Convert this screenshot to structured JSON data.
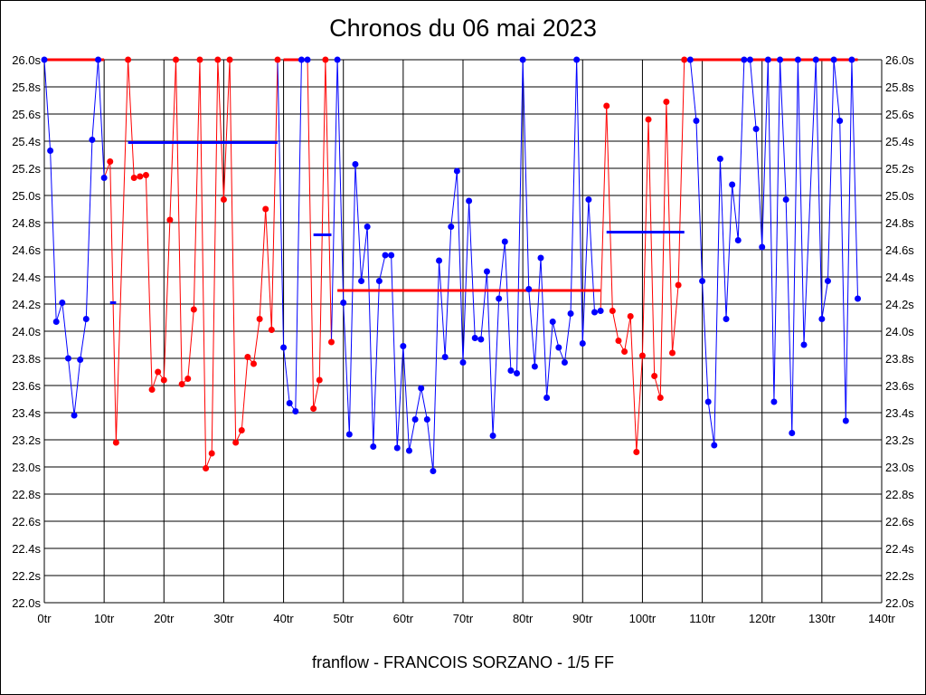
{
  "chart_data": {
    "type": "line",
    "title": "Chronos du 06 mai 2023",
    "subtitle": "franflow - FRANCOIS SORZANO - 1/5 FF",
    "xlabel": "",
    "ylabel": "",
    "xlim": [
      0,
      140
    ],
    "ylim": [
      22.0,
      26.0
    ],
    "grid": true,
    "x_ticks": [
      "0tr",
      "10tr",
      "20tr",
      "30tr",
      "40tr",
      "50tr",
      "60tr",
      "70tr",
      "80tr",
      "90tr",
      "100tr",
      "110tr",
      "120tr",
      "130tr",
      "140tr"
    ],
    "y_ticks": [
      "22.0s",
      "22.2s",
      "22.4s",
      "22.6s",
      "22.8s",
      "23.0s",
      "23.2s",
      "23.4s",
      "23.6s",
      "23.8s",
      "24.0s",
      "24.2s",
      "24.4s",
      "24.6s",
      "24.8s",
      "25.0s",
      "25.2s",
      "25.4s",
      "25.6s",
      "25.8s",
      "26.0s"
    ],
    "colors": {
      "blue": "#0000ff",
      "red": "#ff0000"
    },
    "points": [
      [
        0,
        26.0,
        "blue"
      ],
      [
        1,
        25.33,
        "blue"
      ],
      [
        2,
        24.07,
        "blue"
      ],
      [
        3,
        24.21,
        "blue"
      ],
      [
        4,
        23.8,
        "blue"
      ],
      [
        5,
        23.38,
        "blue"
      ],
      [
        6,
        23.79,
        "blue"
      ],
      [
        7,
        24.09,
        "blue"
      ],
      [
        8,
        25.41,
        "blue"
      ],
      [
        9,
        26.0,
        "blue"
      ],
      [
        10,
        25.13,
        "blue"
      ],
      [
        11,
        25.25,
        "red"
      ],
      [
        12,
        23.18,
        "red"
      ],
      [
        14,
        26.0,
        "red"
      ],
      [
        15,
        25.13,
        "red"
      ],
      [
        16,
        25.14,
        "red"
      ],
      [
        17,
        25.15,
        "red"
      ],
      [
        18,
        23.57,
        "red"
      ],
      [
        19,
        23.7,
        "red"
      ],
      [
        20,
        23.64,
        "red"
      ],
      [
        21,
        24.82,
        "red"
      ],
      [
        22,
        26.0,
        "red"
      ],
      [
        23,
        23.61,
        "red"
      ],
      [
        24,
        23.65,
        "red"
      ],
      [
        25,
        24.16,
        "red"
      ],
      [
        26,
        26.0,
        "red"
      ],
      [
        27,
        22.99,
        "red"
      ],
      [
        28,
        23.1,
        "red"
      ],
      [
        29,
        26.0,
        "red"
      ],
      [
        30,
        24.97,
        "red"
      ],
      [
        31,
        26.0,
        "red"
      ],
      [
        32,
        23.18,
        "red"
      ],
      [
        33,
        23.27,
        "red"
      ],
      [
        34,
        23.81,
        "red"
      ],
      [
        35,
        23.76,
        "red"
      ],
      [
        36,
        24.09,
        "red"
      ],
      [
        37,
        24.9,
        "red"
      ],
      [
        38,
        24.01,
        "red"
      ],
      [
        39,
        26.0,
        "red"
      ],
      [
        40,
        23.88,
        "blue"
      ],
      [
        41,
        23.47,
        "blue"
      ],
      [
        42,
        23.41,
        "blue"
      ],
      [
        43,
        26.0,
        "blue"
      ],
      [
        44,
        26.0,
        "blue"
      ],
      [
        45,
        23.43,
        "red"
      ],
      [
        46,
        23.64,
        "red"
      ],
      [
        47,
        26.0,
        "red"
      ],
      [
        48,
        23.92,
        "red"
      ],
      [
        49,
        26.0,
        "blue"
      ],
      [
        50,
        24.21,
        "blue"
      ],
      [
        51,
        23.24,
        "blue"
      ],
      [
        52,
        25.23,
        "blue"
      ],
      [
        53,
        24.37,
        "blue"
      ],
      [
        54,
        24.77,
        "blue"
      ],
      [
        55,
        23.15,
        "blue"
      ],
      [
        56,
        24.37,
        "blue"
      ],
      [
        57,
        24.56,
        "blue"
      ],
      [
        58,
        24.56,
        "blue"
      ],
      [
        59,
        23.14,
        "blue"
      ],
      [
        60,
        23.89,
        "blue"
      ],
      [
        61,
        23.12,
        "blue"
      ],
      [
        62,
        23.35,
        "blue"
      ],
      [
        63,
        23.58,
        "blue"
      ],
      [
        64,
        23.35,
        "blue"
      ],
      [
        65,
        22.97,
        "blue"
      ],
      [
        66,
        24.52,
        "blue"
      ],
      [
        67,
        23.81,
        "blue"
      ],
      [
        68,
        24.77,
        "blue"
      ],
      [
        69,
        25.18,
        "blue"
      ],
      [
        70,
        23.77,
        "blue"
      ],
      [
        71,
        24.96,
        "blue"
      ],
      [
        72,
        23.95,
        "blue"
      ],
      [
        73,
        23.94,
        "blue"
      ],
      [
        74,
        24.44,
        "blue"
      ],
      [
        75,
        23.23,
        "blue"
      ],
      [
        76,
        24.24,
        "blue"
      ],
      [
        77,
        24.66,
        "blue"
      ],
      [
        78,
        23.71,
        "blue"
      ],
      [
        79,
        23.69,
        "blue"
      ],
      [
        80,
        26.0,
        "blue"
      ],
      [
        81,
        24.31,
        "blue"
      ],
      [
        82,
        23.74,
        "blue"
      ],
      [
        83,
        24.54,
        "blue"
      ],
      [
        84,
        23.51,
        "blue"
      ],
      [
        85,
        24.07,
        "blue"
      ],
      [
        86,
        23.88,
        "blue"
      ],
      [
        87,
        23.77,
        "blue"
      ],
      [
        88,
        24.13,
        "blue"
      ],
      [
        89,
        26.0,
        "blue"
      ],
      [
        90,
        23.91,
        "blue"
      ],
      [
        91,
        24.97,
        "blue"
      ],
      [
        92,
        24.14,
        "blue"
      ],
      [
        93,
        24.15,
        "blue"
      ],
      [
        94,
        25.66,
        "red"
      ],
      [
        95,
        24.15,
        "red"
      ],
      [
        96,
        23.93,
        "red"
      ],
      [
        97,
        23.85,
        "red"
      ],
      [
        98,
        24.11,
        "red"
      ],
      [
        99,
        23.11,
        "red"
      ],
      [
        100,
        23.82,
        "red"
      ],
      [
        101,
        25.56,
        "red"
      ],
      [
        102,
        23.67,
        "red"
      ],
      [
        103,
        23.51,
        "red"
      ],
      [
        104,
        25.69,
        "red"
      ],
      [
        105,
        23.84,
        "red"
      ],
      [
        106,
        24.34,
        "red"
      ],
      [
        107,
        26.0,
        "red"
      ],
      [
        108,
        26.0,
        "blue"
      ],
      [
        109,
        25.55,
        "blue"
      ],
      [
        110,
        24.37,
        "blue"
      ],
      [
        111,
        23.48,
        "blue"
      ],
      [
        112,
        23.16,
        "blue"
      ],
      [
        113,
        25.27,
        "blue"
      ],
      [
        114,
        24.09,
        "blue"
      ],
      [
        115,
        25.08,
        "blue"
      ],
      [
        116,
        24.67,
        "blue"
      ],
      [
        117,
        26.0,
        "blue"
      ],
      [
        118,
        26.0,
        "blue"
      ],
      [
        119,
        25.49,
        "blue"
      ],
      [
        120,
        24.62,
        "blue"
      ],
      [
        121,
        26.0,
        "blue"
      ],
      [
        122,
        23.48,
        "blue"
      ],
      [
        123,
        26.0,
        "blue"
      ],
      [
        124,
        24.97,
        "blue"
      ],
      [
        125,
        23.25,
        "blue"
      ],
      [
        126,
        26.0,
        "blue"
      ],
      [
        127,
        23.9,
        "blue"
      ],
      [
        129,
        26.0,
        "blue"
      ],
      [
        130,
        24.09,
        "blue"
      ],
      [
        131,
        24.37,
        "blue"
      ],
      [
        132,
        26.0,
        "blue"
      ],
      [
        133,
        25.55,
        "blue"
      ],
      [
        134,
        23.34,
        "blue"
      ],
      [
        135,
        26.0,
        "blue"
      ],
      [
        136,
        24.24,
        "blue"
      ]
    ],
    "averages": [
      {
        "from": 0,
        "to": 10,
        "value": 26.0,
        "color": "red"
      },
      {
        "from": 11,
        "to": 12,
        "value": 24.21,
        "color": "blue"
      },
      {
        "from": 14,
        "to": 39,
        "value": 25.39,
        "color": "blue"
      },
      {
        "from": 40,
        "to": 44,
        "value": 26.0,
        "color": "red"
      },
      {
        "from": 45,
        "to": 48,
        "value": 24.71,
        "color": "blue"
      },
      {
        "from": 49,
        "to": 93,
        "value": 24.3,
        "color": "red"
      },
      {
        "from": 94,
        "to": 107,
        "value": 24.73,
        "color": "blue"
      },
      {
        "from": 108,
        "to": 136,
        "value": 26.0,
        "color": "red"
      }
    ]
  }
}
